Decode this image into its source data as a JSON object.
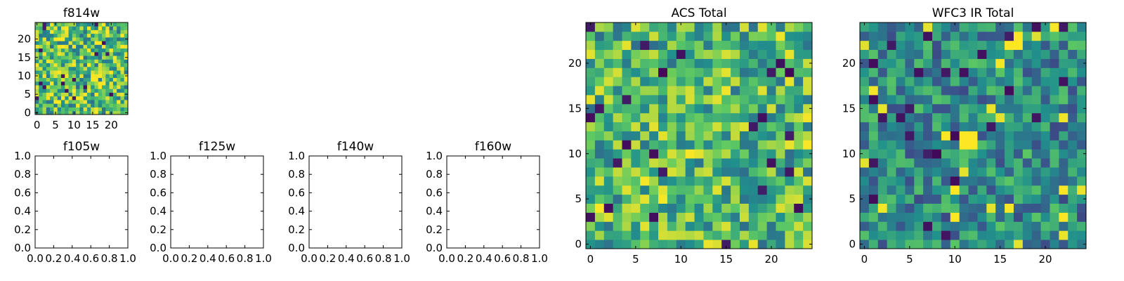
{
  "colors": {
    "axis": "#000000",
    "background": "#ffffff",
    "viridis": [
      "#440154",
      "#3b528b",
      "#21918c",
      "#5ec962",
      "#fde725"
    ]
  },
  "chart_data": [
    {
      "id": "f814w",
      "type": "heatmap",
      "title": "f814w",
      "xlim": [
        -0.5,
        24.5
      ],
      "ylim": [
        -0.5,
        24.5
      ],
      "xticks": [
        0,
        5,
        10,
        15,
        20
      ],
      "yticks": [
        0,
        5,
        10,
        15,
        20
      ],
      "xtick_labels": [
        "0",
        "5",
        "10",
        "15",
        "20"
      ],
      "ytick_labels": [
        "0",
        "5",
        "10",
        "15",
        "20"
      ],
      "grid_size": 25,
      "colormap": "viridis",
      "seed": 11,
      "value_mean": 0.7,
      "value_spread": 0.34
    },
    {
      "id": "f105w",
      "type": "empty",
      "title": "f105w",
      "xlim": [
        0,
        1
      ],
      "ylim": [
        0,
        1
      ],
      "xticks": [
        0,
        0.2,
        0.4,
        0.6,
        0.8,
        1.0
      ],
      "yticks": [
        0,
        0.2,
        0.4,
        0.6,
        0.8,
        1.0
      ],
      "xtick_labels": [
        "0.0",
        "0.2",
        "0.4",
        "0.6",
        "0.8",
        "1.0"
      ],
      "ytick_labels": [
        "0.0",
        "0.2",
        "0.4",
        "0.6",
        "0.8",
        "1.0"
      ]
    },
    {
      "id": "f125w",
      "type": "empty",
      "title": "f125w",
      "xlim": [
        0,
        1
      ],
      "ylim": [
        0,
        1
      ],
      "xticks": [
        0,
        0.2,
        0.4,
        0.6,
        0.8,
        1.0
      ],
      "yticks": [
        0,
        0.2,
        0.4,
        0.6,
        0.8,
        1.0
      ],
      "xtick_labels": [
        "0.0",
        "0.2",
        "0.4",
        "0.6",
        "0.8",
        "1.0"
      ],
      "ytick_labels": [
        "0.0",
        "0.2",
        "0.4",
        "0.6",
        "0.8",
        "1.0"
      ]
    },
    {
      "id": "f140w",
      "type": "empty",
      "title": "f140w",
      "xlim": [
        0,
        1
      ],
      "ylim": [
        0,
        1
      ],
      "xticks": [
        0,
        0.2,
        0.4,
        0.6,
        0.8,
        1.0
      ],
      "yticks": [
        0,
        0.2,
        0.4,
        0.6,
        0.8,
        1.0
      ],
      "xtick_labels": [
        "0.0",
        "0.2",
        "0.4",
        "0.6",
        "0.8",
        "1.0"
      ],
      "ytick_labels": [
        "0.0",
        "0.2",
        "0.4",
        "0.6",
        "0.8",
        "1.0"
      ]
    },
    {
      "id": "f160w",
      "type": "empty",
      "title": "f160w",
      "xlim": [
        0,
        1
      ],
      "ylim": [
        0,
        1
      ],
      "xticks": [
        0,
        0.2,
        0.4,
        0.6,
        0.8,
        1.0
      ],
      "yticks": [
        0,
        0.2,
        0.4,
        0.6,
        0.8,
        1.0
      ],
      "xtick_labels": [
        "0.0",
        "0.2",
        "0.4",
        "0.6",
        "0.8",
        "1.0"
      ],
      "ytick_labels": [
        "0.0",
        "0.2",
        "0.4",
        "0.6",
        "0.8",
        "1.0"
      ]
    },
    {
      "id": "acs-total",
      "type": "heatmap",
      "title": "ACS Total",
      "xlim": [
        -0.5,
        24.5
      ],
      "ylim": [
        -0.5,
        24.5
      ],
      "xticks": [
        0,
        5,
        10,
        15,
        20
      ],
      "yticks": [
        0,
        5,
        10,
        15,
        20
      ],
      "xtick_labels": [
        "0",
        "5",
        "10",
        "15",
        "20"
      ],
      "ytick_labels": [
        "0",
        "5",
        "10",
        "15",
        "20"
      ],
      "grid_size": 25,
      "colormap": "viridis",
      "seed": 37,
      "value_mean": 0.66,
      "value_spread": 0.3
    },
    {
      "id": "wfc3-ir-total",
      "type": "heatmap",
      "title": "WFC3 IR Total",
      "xlim": [
        -0.5,
        24.5
      ],
      "ylim": [
        -0.5,
        24.5
      ],
      "xticks": [
        0,
        5,
        10,
        15,
        20
      ],
      "yticks": [
        0,
        5,
        10,
        15,
        20
      ],
      "xtick_labels": [
        "0",
        "5",
        "10",
        "15",
        "20"
      ],
      "ytick_labels": [
        "0",
        "5",
        "10",
        "15",
        "20"
      ],
      "grid_size": 25,
      "colormap": "viridis",
      "seed": 73,
      "value_mean": 0.48,
      "value_spread": 0.26,
      "hot_cells": [
        [
          11,
          11
        ],
        [
          12,
          11
        ],
        [
          11,
          12
        ],
        [
          12,
          12
        ],
        [
          16,
          22
        ],
        [
          17,
          22
        ],
        [
          17,
          23
        ],
        [
          10,
          6
        ],
        [
          10,
          3
        ]
      ]
    }
  ]
}
